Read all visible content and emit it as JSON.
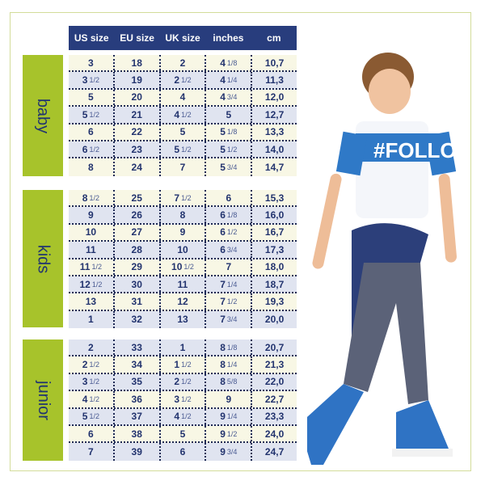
{
  "headers": [
    "US size",
    "EU size",
    "UK size",
    "inches",
    "cm"
  ],
  "groups": [
    {
      "label": "baby",
      "first_row": "cream",
      "rows": [
        [
          "3",
          "18",
          "2",
          "4 1/8",
          "10,7"
        ],
        [
          "3 1/2",
          "19",
          "2 1/2",
          "4 1/4",
          "11,3"
        ],
        [
          "5",
          "20",
          "4",
          "4 3/4",
          "12,0"
        ],
        [
          "5 1/2",
          "21",
          "4 1/2",
          "5",
          "12,7"
        ],
        [
          "6",
          "22",
          "5",
          "5 1/8",
          "13,3"
        ],
        [
          "6 1/2",
          "23",
          "5 1/2",
          "5 1/2",
          "14,0"
        ],
        [
          "8",
          "24",
          "7",
          "5 3/4",
          "14,7"
        ]
      ]
    },
    {
      "label": "kids",
      "first_row": "cream",
      "rows": [
        [
          "8 1/2",
          "25",
          "7 1/2",
          "6",
          "15,3"
        ],
        [
          "9",
          "26",
          "8",
          "6 1/8",
          "16,0"
        ],
        [
          "10",
          "27",
          "9",
          "6 1/2",
          "16,7"
        ],
        [
          "11",
          "28",
          "10",
          "6 3/4",
          "17,3"
        ],
        [
          "11 1/2",
          "29",
          "10 1/2",
          "7",
          "18,0"
        ],
        [
          "12 1/2",
          "30",
          "11",
          "7 1/4",
          "18,7"
        ],
        [
          "13",
          "31",
          "12",
          "7 1/2",
          "19,3"
        ],
        [
          "1",
          "32",
          "13",
          "7 3/4",
          "20,0"
        ]
      ]
    },
    {
      "label": "junior",
      "first_row": "blue",
      "rows": [
        [
          "2",
          "33",
          "1",
          "8 1/8",
          "20,7"
        ],
        [
          "2 1/2",
          "34",
          "1 1/2",
          "8 1/4",
          "21,3"
        ],
        [
          "3 1/2",
          "35",
          "2 1/2",
          "8 5/8",
          "22,0"
        ],
        [
          "4 1/2",
          "36",
          "3 1/2",
          "9",
          "22,7"
        ],
        [
          "5 1/2",
          "37",
          "4 1/2",
          "9 1/4",
          "23,3"
        ],
        [
          "6",
          "38",
          "5",
          "9 1/2",
          "24,0"
        ],
        [
          "7",
          "39",
          "6",
          "9 3/4",
          "24,7"
        ]
      ]
    }
  ],
  "photo": {
    "shirt_text": "#FOLLO"
  },
  "colors": {
    "header": "#283d7d",
    "category": "#a7c32b",
    "row_cream": "#f8f7e5",
    "row_blue": "#e0e4f0",
    "text": "#22336e"
  }
}
